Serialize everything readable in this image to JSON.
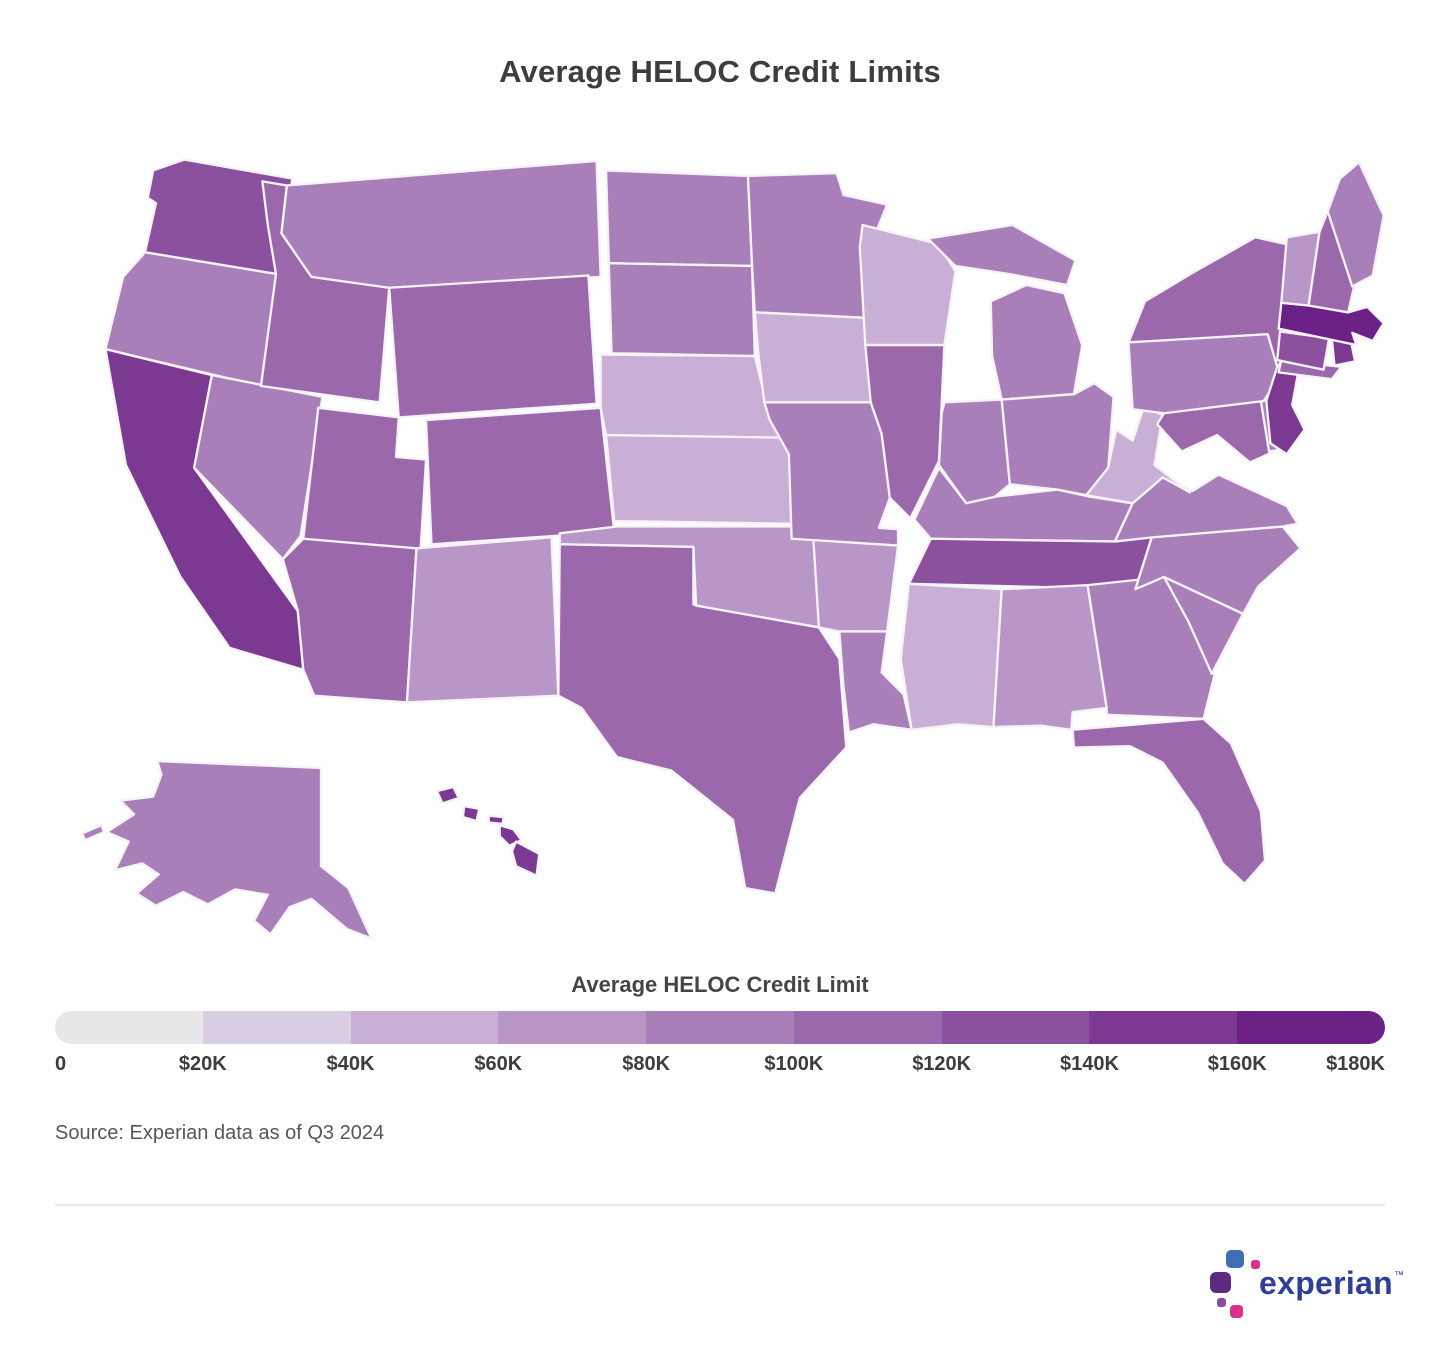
{
  "title": "Average HELOC Credit Limits",
  "legend": {
    "title": "Average HELOC Credit Limit",
    "tick_labels": [
      "0",
      "$20K",
      "$40K",
      "$60K",
      "$80K",
      "$100K",
      "$120K",
      "$140K",
      "$160K",
      "$180K"
    ]
  },
  "source": "Source: Experian data as of Q3 2024",
  "logo": {
    "brand_text": "experian",
    "trademark": "™",
    "wordmark_color": "#2f3f96",
    "mark_colors": {
      "blue": "#406eb3",
      "magenta": "#d9318a",
      "purple": "#5c2a7f",
      "purple_light": "#8a4a9e"
    }
  },
  "chart_data": {
    "type": "choropleth",
    "region": "United States",
    "title": "Average HELOC Credit Limits",
    "value_label": "Average HELOC Credit Limit",
    "unit": "USD thousands",
    "scale_range": [
      0,
      180
    ],
    "legend_position": "bottom",
    "bins": [
      {
        "min": 0,
        "max": 20,
        "color": "#e8e6e9"
      },
      {
        "min": 20,
        "max": 40,
        "color": "#d9cde1"
      },
      {
        "min": 40,
        "max": 60,
        "color": "#c9afd6"
      },
      {
        "min": 60,
        "max": 80,
        "color": "#b897c8"
      },
      {
        "min": 80,
        "max": 100,
        "color": "#a87fb9"
      },
      {
        "min": 100,
        "max": 120,
        "color": "#9a68ab"
      },
      {
        "min": 120,
        "max": 140,
        "color": "#8b519e"
      },
      {
        "min": 140,
        "max": 160,
        "color": "#7b3992"
      },
      {
        "min": 160,
        "max": 180,
        "color": "#6b2185"
      }
    ],
    "states": [
      {
        "id": "AL",
        "name": "Alabama",
        "value": 65
      },
      {
        "id": "AK",
        "name": "Alaska",
        "value": 90
      },
      {
        "id": "AZ",
        "name": "Arizona",
        "value": 105
      },
      {
        "id": "AR",
        "name": "Arkansas",
        "value": 72
      },
      {
        "id": "CA",
        "name": "California",
        "value": 150
      },
      {
        "id": "CO",
        "name": "Colorado",
        "value": 112
      },
      {
        "id": "CT",
        "name": "Connecticut",
        "value": 128
      },
      {
        "id": "DE",
        "name": "Delaware",
        "value": 95
      },
      {
        "id": "FL",
        "name": "Florida",
        "value": 108
      },
      {
        "id": "GA",
        "name": "Georgia",
        "value": 88
      },
      {
        "id": "HI",
        "name": "Hawaii",
        "value": 152
      },
      {
        "id": "ID",
        "name": "Idaho",
        "value": 105
      },
      {
        "id": "IL",
        "name": "Illinois",
        "value": 105
      },
      {
        "id": "IN",
        "name": "Indiana",
        "value": 82
      },
      {
        "id": "IA",
        "name": "Iowa",
        "value": 60
      },
      {
        "id": "KS",
        "name": "Kansas",
        "value": 55
      },
      {
        "id": "KY",
        "name": "Kentucky",
        "value": 82
      },
      {
        "id": "LA",
        "name": "Louisiana",
        "value": 90
      },
      {
        "id": "ME",
        "name": "Maine",
        "value": 82
      },
      {
        "id": "MD",
        "name": "Maryland",
        "value": 110
      },
      {
        "id": "MA",
        "name": "Massachusetts",
        "value": 165
      },
      {
        "id": "MI",
        "name": "Michigan",
        "value": 85
      },
      {
        "id": "MN",
        "name": "Minnesota",
        "value": 90
      },
      {
        "id": "MS",
        "name": "Mississippi",
        "value": 55
      },
      {
        "id": "MO",
        "name": "Missouri",
        "value": 82
      },
      {
        "id": "MT",
        "name": "Montana",
        "value": 88
      },
      {
        "id": "NE",
        "name": "Nebraska",
        "value": 52
      },
      {
        "id": "NV",
        "name": "Nevada",
        "value": 85
      },
      {
        "id": "NH",
        "name": "New Hampshire",
        "value": 105
      },
      {
        "id": "NJ",
        "name": "New Jersey",
        "value": 142
      },
      {
        "id": "NM",
        "name": "New Mexico",
        "value": 72
      },
      {
        "id": "NY",
        "name": "New York",
        "value": 112
      },
      {
        "id": "NC",
        "name": "North Carolina",
        "value": 88
      },
      {
        "id": "ND",
        "name": "North Dakota",
        "value": 85
      },
      {
        "id": "OH",
        "name": "Ohio",
        "value": 82
      },
      {
        "id": "OK",
        "name": "Oklahoma",
        "value": 65
      },
      {
        "id": "OR",
        "name": "Oregon",
        "value": 88
      },
      {
        "id": "PA",
        "name": "Pennsylvania",
        "value": 86
      },
      {
        "id": "RI",
        "name": "Rhode Island",
        "value": 142
      },
      {
        "id": "SC",
        "name": "South Carolina",
        "value": 85
      },
      {
        "id": "SD",
        "name": "South Dakota",
        "value": 82
      },
      {
        "id": "TN",
        "name": "Tennessee",
        "value": 125
      },
      {
        "id": "TX",
        "name": "Texas",
        "value": 118
      },
      {
        "id": "UT",
        "name": "Utah",
        "value": 108
      },
      {
        "id": "VT",
        "name": "Vermont",
        "value": 70
      },
      {
        "id": "VA",
        "name": "Virginia",
        "value": 90
      },
      {
        "id": "WA",
        "name": "Washington",
        "value": 130
      },
      {
        "id": "WV",
        "name": "West Virginia",
        "value": 45
      },
      {
        "id": "WI",
        "name": "Wisconsin",
        "value": 55
      },
      {
        "id": "WY",
        "name": "Wyoming",
        "value": 102
      }
    ]
  }
}
